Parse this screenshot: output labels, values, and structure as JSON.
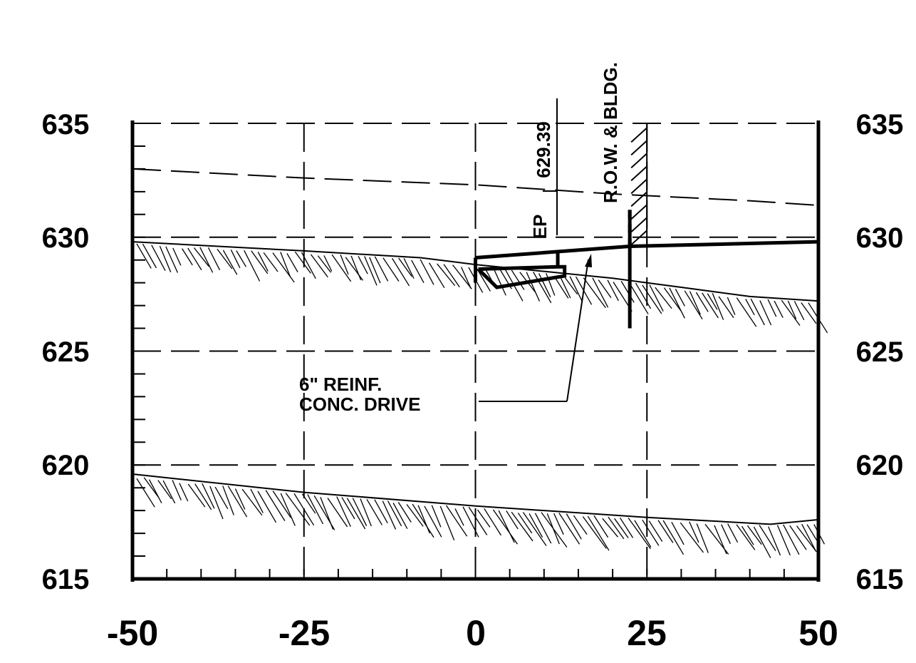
{
  "chart_data": {
    "type": "line",
    "title": "",
    "xlabel": "",
    "ylabel": "",
    "xlim": [
      -50,
      50
    ],
    "ylim": [
      615,
      635
    ],
    "x_ticks": [
      -50,
      -25,
      0,
      25,
      50
    ],
    "y_ticks": [
      615,
      620,
      625,
      630,
      635
    ],
    "y_tick_labels_left": [
      "635",
      "630",
      "625",
      "620",
      "615"
    ],
    "y_tick_labels_right": [
      "635",
      "630",
      "625",
      "620",
      "615"
    ],
    "x_tick_labels": [
      "-50",
      "-25",
      "0",
      "25",
      "50"
    ],
    "grid": true,
    "series": [
      {
        "kind": "dashed-ground-line",
        "x": [
          -50,
          -25,
          0,
          20,
          40,
          50
        ],
        "y": [
          633.0,
          632.6,
          632.3,
          631.9,
          631.6,
          631.4
        ]
      },
      {
        "kind": "upper-hatched-ground",
        "x": [
          -50,
          -25,
          -8,
          0,
          10,
          20,
          30,
          40,
          50
        ],
        "y": [
          629.8,
          629.4,
          629.1,
          628.8,
          628.5,
          628.2,
          627.8,
          627.4,
          627.2
        ]
      },
      {
        "kind": "lower-hatched-ground",
        "x": [
          -50,
          -25,
          0,
          25,
          43,
          50
        ],
        "y": [
          619.6,
          618.8,
          618.2,
          617.7,
          617.4,
          617.6
        ]
      },
      {
        "kind": "drive-profile",
        "x": [
          0,
          22.5,
          50
        ],
        "y": [
          629.1,
          629.6,
          629.8
        ]
      }
    ],
    "annotations": {
      "ep_label": "EP",
      "ep_value": "629.39",
      "ep_x": 12,
      "row_label": "R.O.W. & BLDG.",
      "row_x": 22.5,
      "drive_note_line1": "6\" REINF.",
      "drive_note_line2": "CONC. DRIVE"
    }
  }
}
